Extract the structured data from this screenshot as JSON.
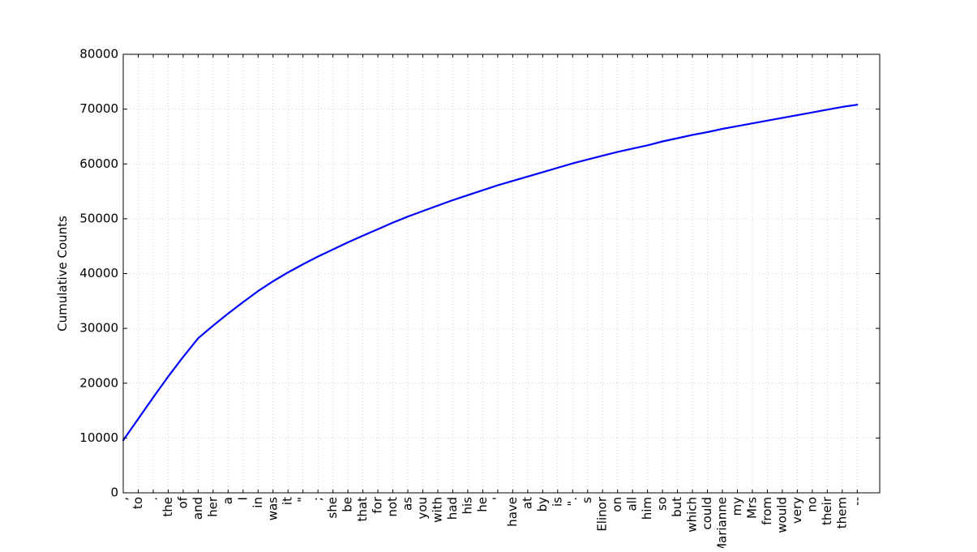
{
  "colors": {
    "line": "#0000ff",
    "grid": "#b0b0b0",
    "axis": "#000000",
    "background": "#ffffff"
  },
  "chart_data": {
    "type": "line",
    "title": "",
    "xlabel": "",
    "ylabel": "Cumulative Counts",
    "grid": true,
    "ylim": [
      0,
      80000
    ],
    "yticks": [
      0,
      10000,
      20000,
      30000,
      40000,
      50000,
      60000,
      70000,
      80000
    ],
    "categories": [
      ",",
      "to",
      ".",
      "the",
      "of",
      "and",
      "her",
      "a",
      "I",
      "in",
      "was",
      "it",
      "\"",
      ";",
      "she",
      "be",
      "that",
      "for",
      "not",
      "as",
      "you",
      "with",
      "had",
      "his",
      "he",
      "'",
      "have",
      "at",
      "by",
      "is",
      "\".",
      "s",
      "Elinor",
      "on",
      "all",
      "him",
      "so",
      "but",
      "which",
      "could",
      "Marianne",
      "my",
      "Mrs",
      "from",
      "would",
      "very",
      "no",
      "their",
      "them",
      "--"
    ],
    "series": [
      {
        "values": [
          9600,
          13500,
          17400,
          21200,
          24800,
          28200,
          30500,
          32700,
          34800,
          36800,
          38600,
          40200,
          41700,
          43100,
          44400,
          45700,
          46900,
          48100,
          49300,
          50400,
          51400,
          52400,
          53400,
          54300,
          55200,
          56100,
          56900,
          57700,
          58500,
          59300,
          60100,
          60800,
          61500,
          62200,
          62800,
          63400,
          64100,
          64700,
          65300,
          65800,
          66400,
          66900,
          67400,
          67900,
          68400,
          68900,
          69400,
          69900,
          70400,
          70800
        ]
      }
    ]
  }
}
